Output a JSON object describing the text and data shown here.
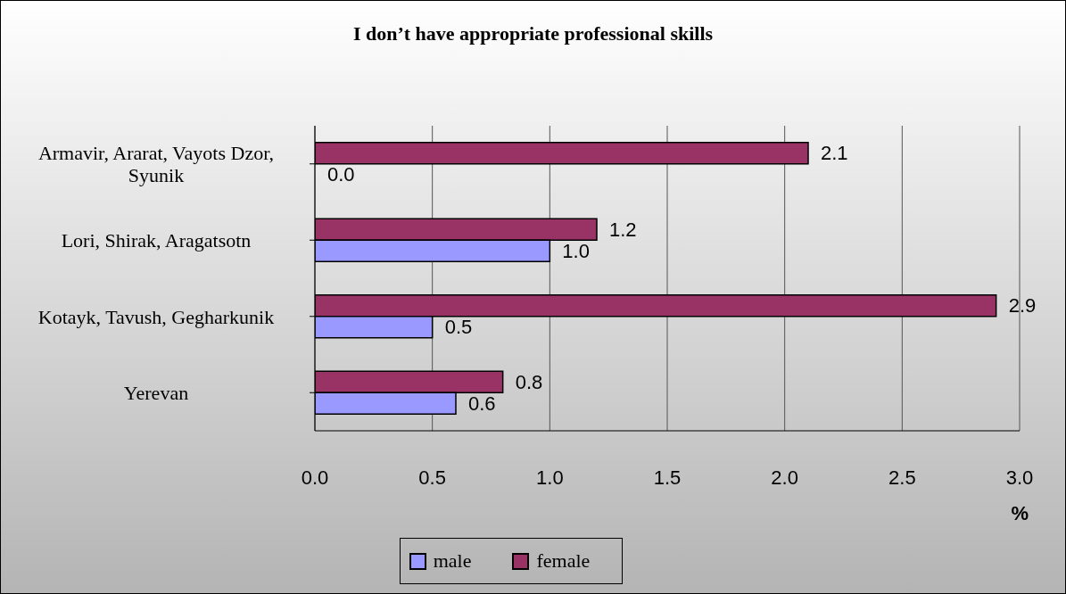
{
  "chart_data": {
    "type": "bar",
    "orientation": "horizontal",
    "title": "I don’t have appropriate professional skills",
    "xlabel": "%",
    "categories": [
      "Armavir, Ararat, Vayots Dzor, Syunik",
      "Lori, Shirak, Aragatsotn",
      "Kotayk, Tavush, Gegharkunik",
      "Yerevan"
    ],
    "series": [
      {
        "name": "male",
        "color": "#9999ff",
        "values": [
          0,
          1,
          0.5,
          0.6
        ],
        "value_labels": [
          "0.0",
          "1.0",
          "0.5",
          "0.6"
        ]
      },
      {
        "name": "female",
        "color": "#993366",
        "values": [
          2.1,
          1.2,
          2.9,
          0.8
        ],
        "value_labels": [
          "2.1",
          "1.2",
          "2.9",
          "0.8"
        ]
      }
    ],
    "xlim": [
      0,
      3
    ],
    "xticks": [
      {
        "value": 0,
        "label": "0.0"
      },
      0.5,
      {
        "value": 1,
        "label": "1.0"
      },
      1.5,
      {
        "value": 2,
        "label": "2.0"
      },
      2.5,
      {
        "value": 3,
        "label": "3.0"
      }
    ],
    "grid": "x",
    "legend": "bottom"
  }
}
